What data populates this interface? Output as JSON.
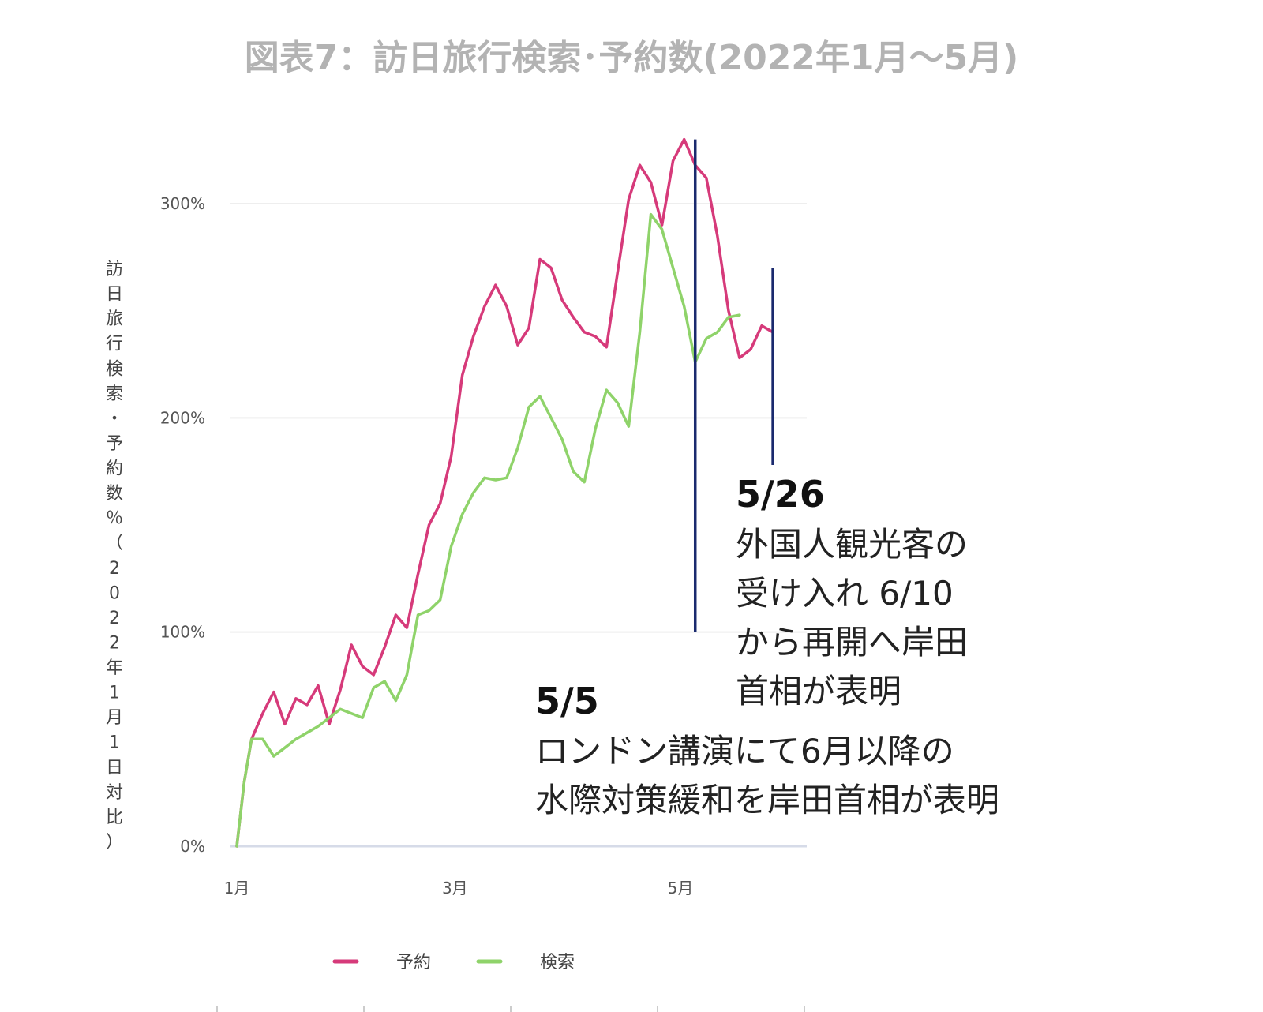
{
  "chart_data": {
    "type": "line",
    "title": "図表7：訪日旅行検索･予約数(2022年1月～5月)",
    "ylabel": "訪日旅行検索・予約数％（2022年1月1日対比）",
    "xlabel": "",
    "ylim": [
      0,
      300
    ],
    "yticks": [
      {
        "value": 0,
        "label": "0%"
      },
      {
        "value": 100,
        "label": "100%"
      },
      {
        "value": 200,
        "label": "200%"
      },
      {
        "value": 300,
        "label": "300%"
      }
    ],
    "xticks": [
      {
        "value": "2022-01-01",
        "label": "1月"
      },
      {
        "value": "2022-03-01",
        "label": "3月"
      },
      {
        "value": "2022-05-01",
        "label": "5月"
      }
    ],
    "grid": true,
    "legend": "bottom",
    "series": [
      {
        "name": "予約",
        "color": "#d63a7a",
        "points": [
          [
            "2022-01-01",
            0
          ],
          [
            "2022-01-03",
            30
          ],
          [
            "2022-01-05",
            50
          ],
          [
            "2022-01-08",
            62
          ],
          [
            "2022-01-11",
            72
          ],
          [
            "2022-01-14",
            57
          ],
          [
            "2022-01-17",
            69
          ],
          [
            "2022-01-20",
            66
          ],
          [
            "2022-01-23",
            75
          ],
          [
            "2022-01-26",
            57
          ],
          [
            "2022-01-29",
            73
          ],
          [
            "2022-02-01",
            94
          ],
          [
            "2022-02-04",
            84
          ],
          [
            "2022-02-07",
            80
          ],
          [
            "2022-02-10",
            93
          ],
          [
            "2022-02-13",
            108
          ],
          [
            "2022-02-16",
            102
          ],
          [
            "2022-02-19",
            127
          ],
          [
            "2022-02-22",
            150
          ],
          [
            "2022-02-25",
            160
          ],
          [
            "2022-02-28",
            182
          ],
          [
            "2022-03-03",
            220
          ],
          [
            "2022-03-06",
            238
          ],
          [
            "2022-03-09",
            252
          ],
          [
            "2022-03-12",
            262
          ],
          [
            "2022-03-15",
            252
          ],
          [
            "2022-03-18",
            234
          ],
          [
            "2022-03-21",
            242
          ],
          [
            "2022-03-24",
            274
          ],
          [
            "2022-03-27",
            270
          ],
          [
            "2022-03-30",
            255
          ],
          [
            "2022-04-02",
            247
          ],
          [
            "2022-04-05",
            240
          ],
          [
            "2022-04-08",
            238
          ],
          [
            "2022-04-11",
            233
          ],
          [
            "2022-04-14",
            268
          ],
          [
            "2022-04-17",
            302
          ],
          [
            "2022-04-20",
            318
          ],
          [
            "2022-04-23",
            310
          ],
          [
            "2022-04-26",
            290
          ],
          [
            "2022-04-29",
            320
          ],
          [
            "2022-05-02",
            330
          ],
          [
            "2022-05-05",
            318
          ],
          [
            "2022-05-08",
            312
          ],
          [
            "2022-05-11",
            285
          ],
          [
            "2022-05-14",
            250
          ],
          [
            "2022-05-17",
            228
          ],
          [
            "2022-05-20",
            232
          ],
          [
            "2022-05-23",
            243
          ],
          [
            "2022-05-26",
            240
          ]
        ]
      },
      {
        "name": "検索",
        "color": "#8fd36a",
        "points": [
          [
            "2022-01-01",
            0
          ],
          [
            "2022-01-03",
            30
          ],
          [
            "2022-01-05",
            50
          ],
          [
            "2022-01-08",
            50
          ],
          [
            "2022-01-11",
            42
          ],
          [
            "2022-01-14",
            46
          ],
          [
            "2022-01-17",
            50
          ],
          [
            "2022-01-20",
            53
          ],
          [
            "2022-01-23",
            56
          ],
          [
            "2022-01-26",
            60
          ],
          [
            "2022-01-29",
            64
          ],
          [
            "2022-02-01",
            62
          ],
          [
            "2022-02-04",
            60
          ],
          [
            "2022-02-07",
            74
          ],
          [
            "2022-02-10",
            77
          ],
          [
            "2022-02-13",
            68
          ],
          [
            "2022-02-16",
            80
          ],
          [
            "2022-02-19",
            108
          ],
          [
            "2022-02-22",
            110
          ],
          [
            "2022-02-25",
            115
          ],
          [
            "2022-02-28",
            140
          ],
          [
            "2022-03-03",
            155
          ],
          [
            "2022-03-06",
            165
          ],
          [
            "2022-03-09",
            172
          ],
          [
            "2022-03-12",
            171
          ],
          [
            "2022-03-15",
            172
          ],
          [
            "2022-03-18",
            186
          ],
          [
            "2022-03-21",
            205
          ],
          [
            "2022-03-24",
            210
          ],
          [
            "2022-03-27",
            200
          ],
          [
            "2022-03-30",
            190
          ],
          [
            "2022-04-02",
            175
          ],
          [
            "2022-04-05",
            170
          ],
          [
            "2022-04-08",
            195
          ],
          [
            "2022-04-11",
            213
          ],
          [
            "2022-04-14",
            207
          ],
          [
            "2022-04-17",
            196
          ],
          [
            "2022-04-20",
            240
          ],
          [
            "2022-04-23",
            295
          ],
          [
            "2022-04-26",
            288
          ],
          [
            "2022-04-29",
            270
          ],
          [
            "2022-05-02",
            252
          ],
          [
            "2022-05-05",
            226
          ],
          [
            "2022-05-08",
            237
          ],
          [
            "2022-05-11",
            240
          ],
          [
            "2022-05-14",
            247
          ],
          [
            "2022-05-17",
            248
          ]
        ]
      }
    ],
    "annotations": [
      {
        "marker_date": "2022-05-05",
        "marker_range": [
          100,
          330
        ],
        "date_label": "5/5",
        "lines": [
          "ロンドン講演にて6月以降の",
          "水際対策緩和を岸田首相が表明"
        ]
      },
      {
        "marker_date": "2022-05-26",
        "marker_range": [
          178,
          270
        ],
        "date_label": "5/26",
        "lines": [
          "外国人観光客の",
          "受け入れ 6/10",
          "から再開へ岸田",
          "首相が表明"
        ]
      }
    ]
  }
}
